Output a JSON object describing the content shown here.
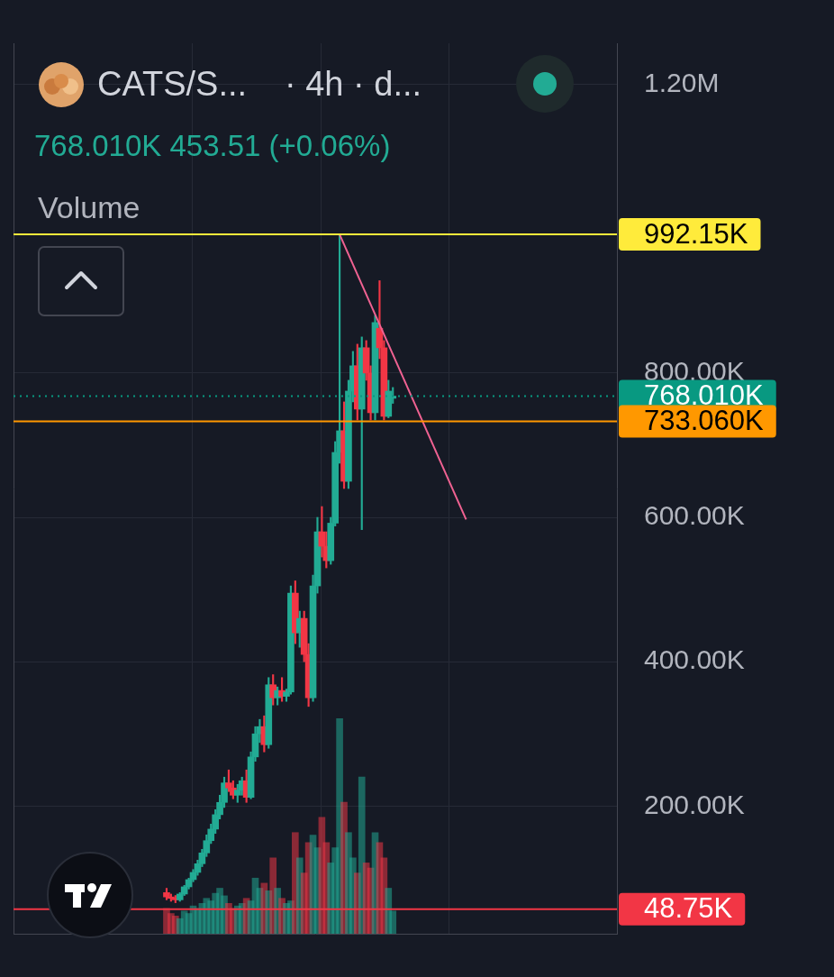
{
  "chart_data": {
    "type": "candlestick",
    "title": "CATS/S...",
    "subtitle": "· 4h · d...",
    "annotations": [
      {
        "text": "768.010K 453.51 (+0.06%)"
      }
    ],
    "x": [
      0,
      1,
      2,
      3,
      4,
      5,
      6,
      7,
      8,
      9,
      10,
      11,
      12,
      13,
      14,
      15,
      16,
      17,
      18,
      19,
      20,
      21,
      22,
      23,
      24,
      25,
      26,
      27,
      28,
      29,
      30,
      31,
      32,
      33,
      34,
      35,
      36,
      37,
      38,
      39,
      40,
      41,
      42,
      43,
      44,
      45,
      46,
      47,
      48,
      49,
      50,
      51
    ],
    "series": [
      {
        "type": "candlestick",
        "open": [
          80000,
          74000,
          72000,
          70000,
          78000,
          88000,
          98000,
          108000,
          120000,
          135000,
          152000,
          168000,
          188000,
          205000,
          232000,
          225000,
          215000,
          222000,
          235000,
          212000,
          268000,
          300000,
          310000,
          285000,
          368000,
          350000,
          360000,
          352000,
          358000,
          495000,
          440000,
          460000,
          410000,
          350000,
          505000,
          580000,
          560000,
          540000,
          592000,
          690000,
          720000,
          650000,
          775000,
          810000,
          750000,
          835000,
          800000,
          745000,
          862000,
          835000,
          740000,
          765000
        ],
        "high": [
          86000,
          78000,
          76000,
          80000,
          90000,
          100000,
          112000,
          125000,
          140000,
          160000,
          175000,
          195000,
          215000,
          240000,
          250000,
          235000,
          230000,
          240000,
          250000,
          275000,
          310000,
          320000,
          325000,
          378000,
          382000,
          365000,
          378000,
          362000,
          505000,
          512000,
          470000,
          470000,
          425000,
          520000,
          600000,
          615000,
          580000,
          600000,
          705000,
          992150,
          760000,
          790000,
          830000,
          840000,
          850000,
          845000,
          810000,
          880000,
          928000,
          845000,
          790000,
          780000
        ],
        "low": [
          70000,
          68000,
          66000,
          68000,
          76000,
          85000,
          95000,
          104000,
          116000,
          130000,
          148000,
          162000,
          182000,
          198000,
          220000,
          210000,
          205000,
          215000,
          205000,
          210000,
          262000,
          288000,
          275000,
          280000,
          340000,
          340000,
          345000,
          345000,
          355000,
          425000,
          420000,
          400000,
          338000,
          345000,
          495000,
          545000,
          530000,
          535000,
          588000,
          675000,
          640000,
          640000,
          760000,
          735000,
          583000,
          790000,
          735000,
          735000,
          820000,
          735000,
          738000,
          758000
        ],
        "close": [
          74000,
          72000,
          70000,
          78000,
          88000,
          98000,
          108000,
          120000,
          135000,
          152000,
          168000,
          188000,
          205000,
          232000,
          225000,
          215000,
          222000,
          235000,
          212000,
          268000,
          300000,
          310000,
          285000,
          368000,
          350000,
          360000,
          352000,
          358000,
          495000,
          440000,
          460000,
          410000,
          350000,
          505000,
          580000,
          560000,
          540000,
          592000,
          690000,
          720000,
          650000,
          775000,
          810000,
          750000,
          835000,
          800000,
          745000,
          870000,
          835000,
          740000,
          775000,
          768010
        ],
        "colors": [
          "#f23645",
          "#f23645",
          "#f23645",
          "#22ab94",
          "#22ab94",
          "#22ab94",
          "#22ab94",
          "#22ab94",
          "#22ab94",
          "#22ab94",
          "#22ab94",
          "#22ab94",
          "#22ab94",
          "#22ab94",
          "#f23645",
          "#f23645",
          "#22ab94",
          "#22ab94",
          "#f23645",
          "#22ab94",
          "#22ab94",
          "#22ab94",
          "#f23645",
          "#22ab94",
          "#f23645",
          "#22ab94",
          "#f23645",
          "#22ab94",
          "#22ab94",
          "#f23645",
          "#22ab94",
          "#f23645",
          "#f23645",
          "#22ab94",
          "#22ab94",
          "#f23645",
          "#f23645",
          "#22ab94",
          "#22ab94",
          "#22ab94",
          "#f23645",
          "#22ab94",
          "#22ab94",
          "#f23645",
          "#22ab94",
          "#f23645",
          "#f23645",
          "#22ab94",
          "#f23645",
          "#f23645",
          "#22ab94",
          "#22ab94"
        ]
      },
      {
        "name": "Volume",
        "type": "bar",
        "axis": "y2",
        "values": [
          50000,
          40000,
          35000,
          30000,
          45000,
          40000,
          55000,
          50000,
          60000,
          70000,
          65000,
          80000,
          90000,
          75000,
          60000,
          50000,
          55000,
          60000,
          70000,
          65000,
          110000,
          90000,
          100000,
          85000,
          150000,
          90000,
          70000,
          60000,
          65000,
          200000,
          150000,
          120000,
          180000,
          195000,
          170000,
          230000,
          180000,
          140000,
          170000,
          425000,
          260000,
          200000,
          150000,
          120000,
          310000,
          140000,
          130000,
          200000,
          180000,
          150000,
          90000,
          45000
        ],
        "colors": [
          "#f23645",
          "#f23645",
          "#f23645",
          "#22ab94",
          "#22ab94",
          "#22ab94",
          "#22ab94",
          "#22ab94",
          "#22ab94",
          "#22ab94",
          "#22ab94",
          "#22ab94",
          "#22ab94",
          "#22ab94",
          "#f23645",
          "#f23645",
          "#22ab94",
          "#22ab94",
          "#f23645",
          "#22ab94",
          "#22ab94",
          "#22ab94",
          "#f23645",
          "#22ab94",
          "#f23645",
          "#22ab94",
          "#f23645",
          "#22ab94",
          "#22ab94",
          "#f23645",
          "#22ab94",
          "#f23645",
          "#f23645",
          "#22ab94",
          "#22ab94",
          "#f23645",
          "#f23645",
          "#22ab94",
          "#22ab94",
          "#22ab94",
          "#f23645",
          "#22ab94",
          "#22ab94",
          "#f23645",
          "#22ab94",
          "#f23645",
          "#f23645",
          "#22ab94",
          "#f23645",
          "#f23645",
          "#22ab94",
          "#22ab94"
        ]
      }
    ],
    "trend_line": {
      "x": [
        39,
        67.5
      ],
      "values": [
        992150,
        597000
      ],
      "color": "#f06292"
    },
    "price_lines": [
      {
        "value": 992150,
        "label": "992.15K",
        "color": "#ffeb3b",
        "line_style": "solid"
      },
      {
        "value": 768010,
        "label": "768.010K",
        "color": "#089981",
        "line_style": "dotted"
      },
      {
        "value": 733060,
        "label": "733.060K",
        "color": "#ff9800",
        "line_style": "solid"
      },
      {
        "value": 48750,
        "label": "48.75K",
        "color": "#f23645",
        "line_style": "solid",
        "axis": "y2"
      }
    ],
    "xlim": [
      -0.5,
      67.5
    ],
    "xticks": [
      20.3,
      49.2
    ],
    "ylim": [
      23000,
      1257000
    ],
    "yticks": [
      {
        "value": 200000,
        "label": "200.00K"
      },
      {
        "value": 400000,
        "label": "400.00K"
      },
      {
        "value": 600000,
        "label": "600.00K"
      },
      {
        "value": 800000,
        "label": "800.00K"
      },
      {
        "value": 1200000,
        "label": "1.20M"
      }
    ],
    "y2lim": [
      0,
      1760000
    ],
    "y2ticks": [],
    "grid": true,
    "tick_labels": "y"
  }
}
